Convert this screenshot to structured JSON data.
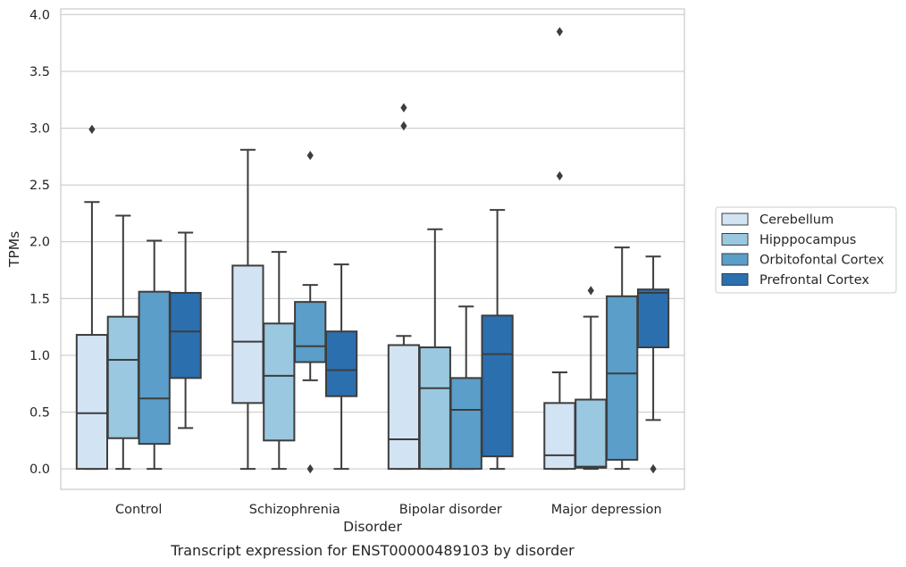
{
  "chart_data": {
    "type": "boxplot",
    "caption": "Transcript expression for ENST00000489103 by disorder",
    "xlabel": "Disorder",
    "ylabel": "TPMs",
    "ylim": [
      -0.18,
      4.05
    ],
    "yticks": [
      "0.0",
      "0.5",
      "1.0",
      "1.5",
      "2.0",
      "2.5",
      "3.0",
      "3.5",
      "4.0"
    ],
    "grid": true,
    "legend_position": "right",
    "categories": [
      "Control",
      "Schizophrenia",
      "Bipolar disorder",
      "Major depression"
    ],
    "series": [
      {
        "name": "Cerebellum",
        "color": "#d2e3f3",
        "boxes": [
          {
            "whislo": 0.0,
            "q1": 0.0,
            "med": 0.49,
            "q3": 1.18,
            "whishi": 2.35,
            "fliers": [
              2.99
            ]
          },
          {
            "whislo": 0.0,
            "q1": 0.58,
            "med": 1.12,
            "q3": 1.79,
            "whishi": 2.81,
            "fliers": []
          },
          {
            "whislo": 0.0,
            "q1": 0.0,
            "med": 0.26,
            "q3": 1.09,
            "whishi": 1.17,
            "fliers": [
              3.02,
              3.18
            ]
          },
          {
            "whislo": 0.0,
            "q1": 0.0,
            "med": 0.12,
            "q3": 0.58,
            "whishi": 0.85,
            "fliers": [
              2.58,
              3.85
            ]
          }
        ]
      },
      {
        "name": "Hipppocampus",
        "color": "#9ac8e0",
        "boxes": [
          {
            "whislo": 0.0,
            "q1": 0.27,
            "med": 0.96,
            "q3": 1.34,
            "whishi": 2.23,
            "fliers": []
          },
          {
            "whislo": 0.0,
            "q1": 0.25,
            "med": 0.82,
            "q3": 1.28,
            "whishi": 1.91,
            "fliers": []
          },
          {
            "whislo": 0.0,
            "q1": 0.0,
            "med": 0.71,
            "q3": 1.07,
            "whishi": 2.11,
            "fliers": []
          },
          {
            "whislo": 0.0,
            "q1": 0.01,
            "med": 0.02,
            "q3": 0.61,
            "whishi": 1.34,
            "fliers": [
              1.57
            ]
          }
        ]
      },
      {
        "name": "Orbitofontal Cortex",
        "color": "#5a9ec9",
        "boxes": [
          {
            "whislo": 0.0,
            "q1": 0.22,
            "med": 0.62,
            "q3": 1.56,
            "whishi": 2.01,
            "fliers": []
          },
          {
            "whislo": 0.78,
            "q1": 0.94,
            "med": 1.08,
            "q3": 1.47,
            "whishi": 1.62,
            "fliers": [
              0.0,
              2.76
            ]
          },
          {
            "whislo": 0.0,
            "q1": 0.0,
            "med": 0.52,
            "q3": 0.8,
            "whishi": 1.43,
            "fliers": []
          },
          {
            "whislo": 0.0,
            "q1": 0.08,
            "med": 0.84,
            "q3": 1.52,
            "whishi": 1.95,
            "fliers": []
          }
        ]
      },
      {
        "name": "Prefrontal Cortex",
        "color": "#2c6faf",
        "boxes": [
          {
            "whislo": 0.36,
            "q1": 0.8,
            "med": 1.21,
            "q3": 1.55,
            "whishi": 2.08,
            "fliers": []
          },
          {
            "whislo": 0.0,
            "q1": 0.64,
            "med": 0.87,
            "q3": 1.21,
            "whishi": 1.8,
            "fliers": []
          },
          {
            "whislo": 0.0,
            "q1": 0.11,
            "med": 1.01,
            "q3": 1.35,
            "whishi": 2.28,
            "fliers": []
          },
          {
            "whislo": 0.43,
            "q1": 1.07,
            "med": 1.55,
            "q3": 1.58,
            "whishi": 1.87,
            "fliers": [
              0.0
            ]
          }
        ]
      }
    ]
  }
}
